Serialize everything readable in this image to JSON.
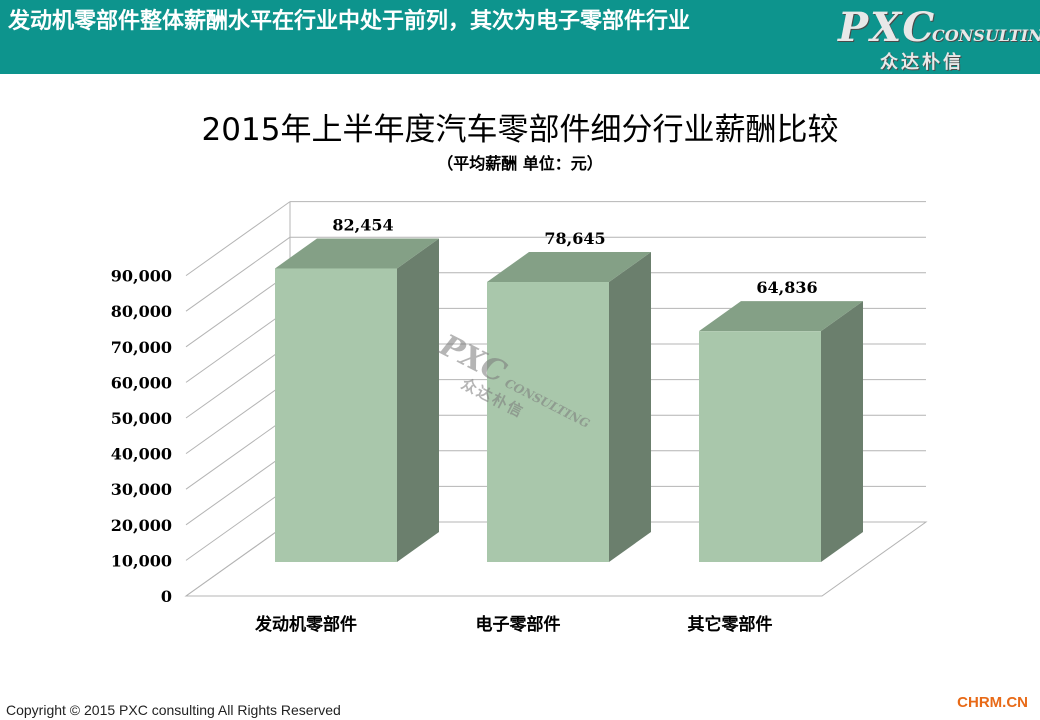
{
  "header": {
    "title": "发动机零部件整体薪酬水平在行业中处于前列，其次为电子零部件行业",
    "logo_main": "PXC",
    "logo_sub": "CONSULTING",
    "logo_cn": "众达朴信"
  },
  "chart_data": {
    "type": "bar",
    "title": "2015年上半年度汽车零部件细分行业薪酬比较",
    "subtitle": "（平均薪酬 单位：元）",
    "categories": [
      "发动机零部件",
      "电子零部件",
      "其它零部件"
    ],
    "values": [
      82454,
      78645,
      64836
    ],
    "value_labels": [
      "82,454",
      "78,645",
      "64,836"
    ],
    "ylim": [
      0,
      90000
    ],
    "yticks": [
      0,
      10000,
      20000,
      30000,
      40000,
      50000,
      60000,
      70000,
      80000,
      90000
    ],
    "ytick_labels": [
      "0",
      "10,000",
      "20,000",
      "30,000",
      "40,000",
      "50,000",
      "60,000",
      "70,000",
      "80,000",
      "90,000"
    ],
    "grid": true,
    "style": "3d-column",
    "colors": {
      "front": "#a9c7ab",
      "side": "#6b7f6d",
      "top": "#84a086",
      "grid": "#b4b4b4"
    }
  },
  "watermark": {
    "main": "PXC",
    "sub": "CONSULTING",
    "cn": "众达朴信"
  },
  "footer": {
    "copyright": "Copyright © 2015 PXC consulting All Rights Reserved",
    "site": "CHRM.CN"
  }
}
